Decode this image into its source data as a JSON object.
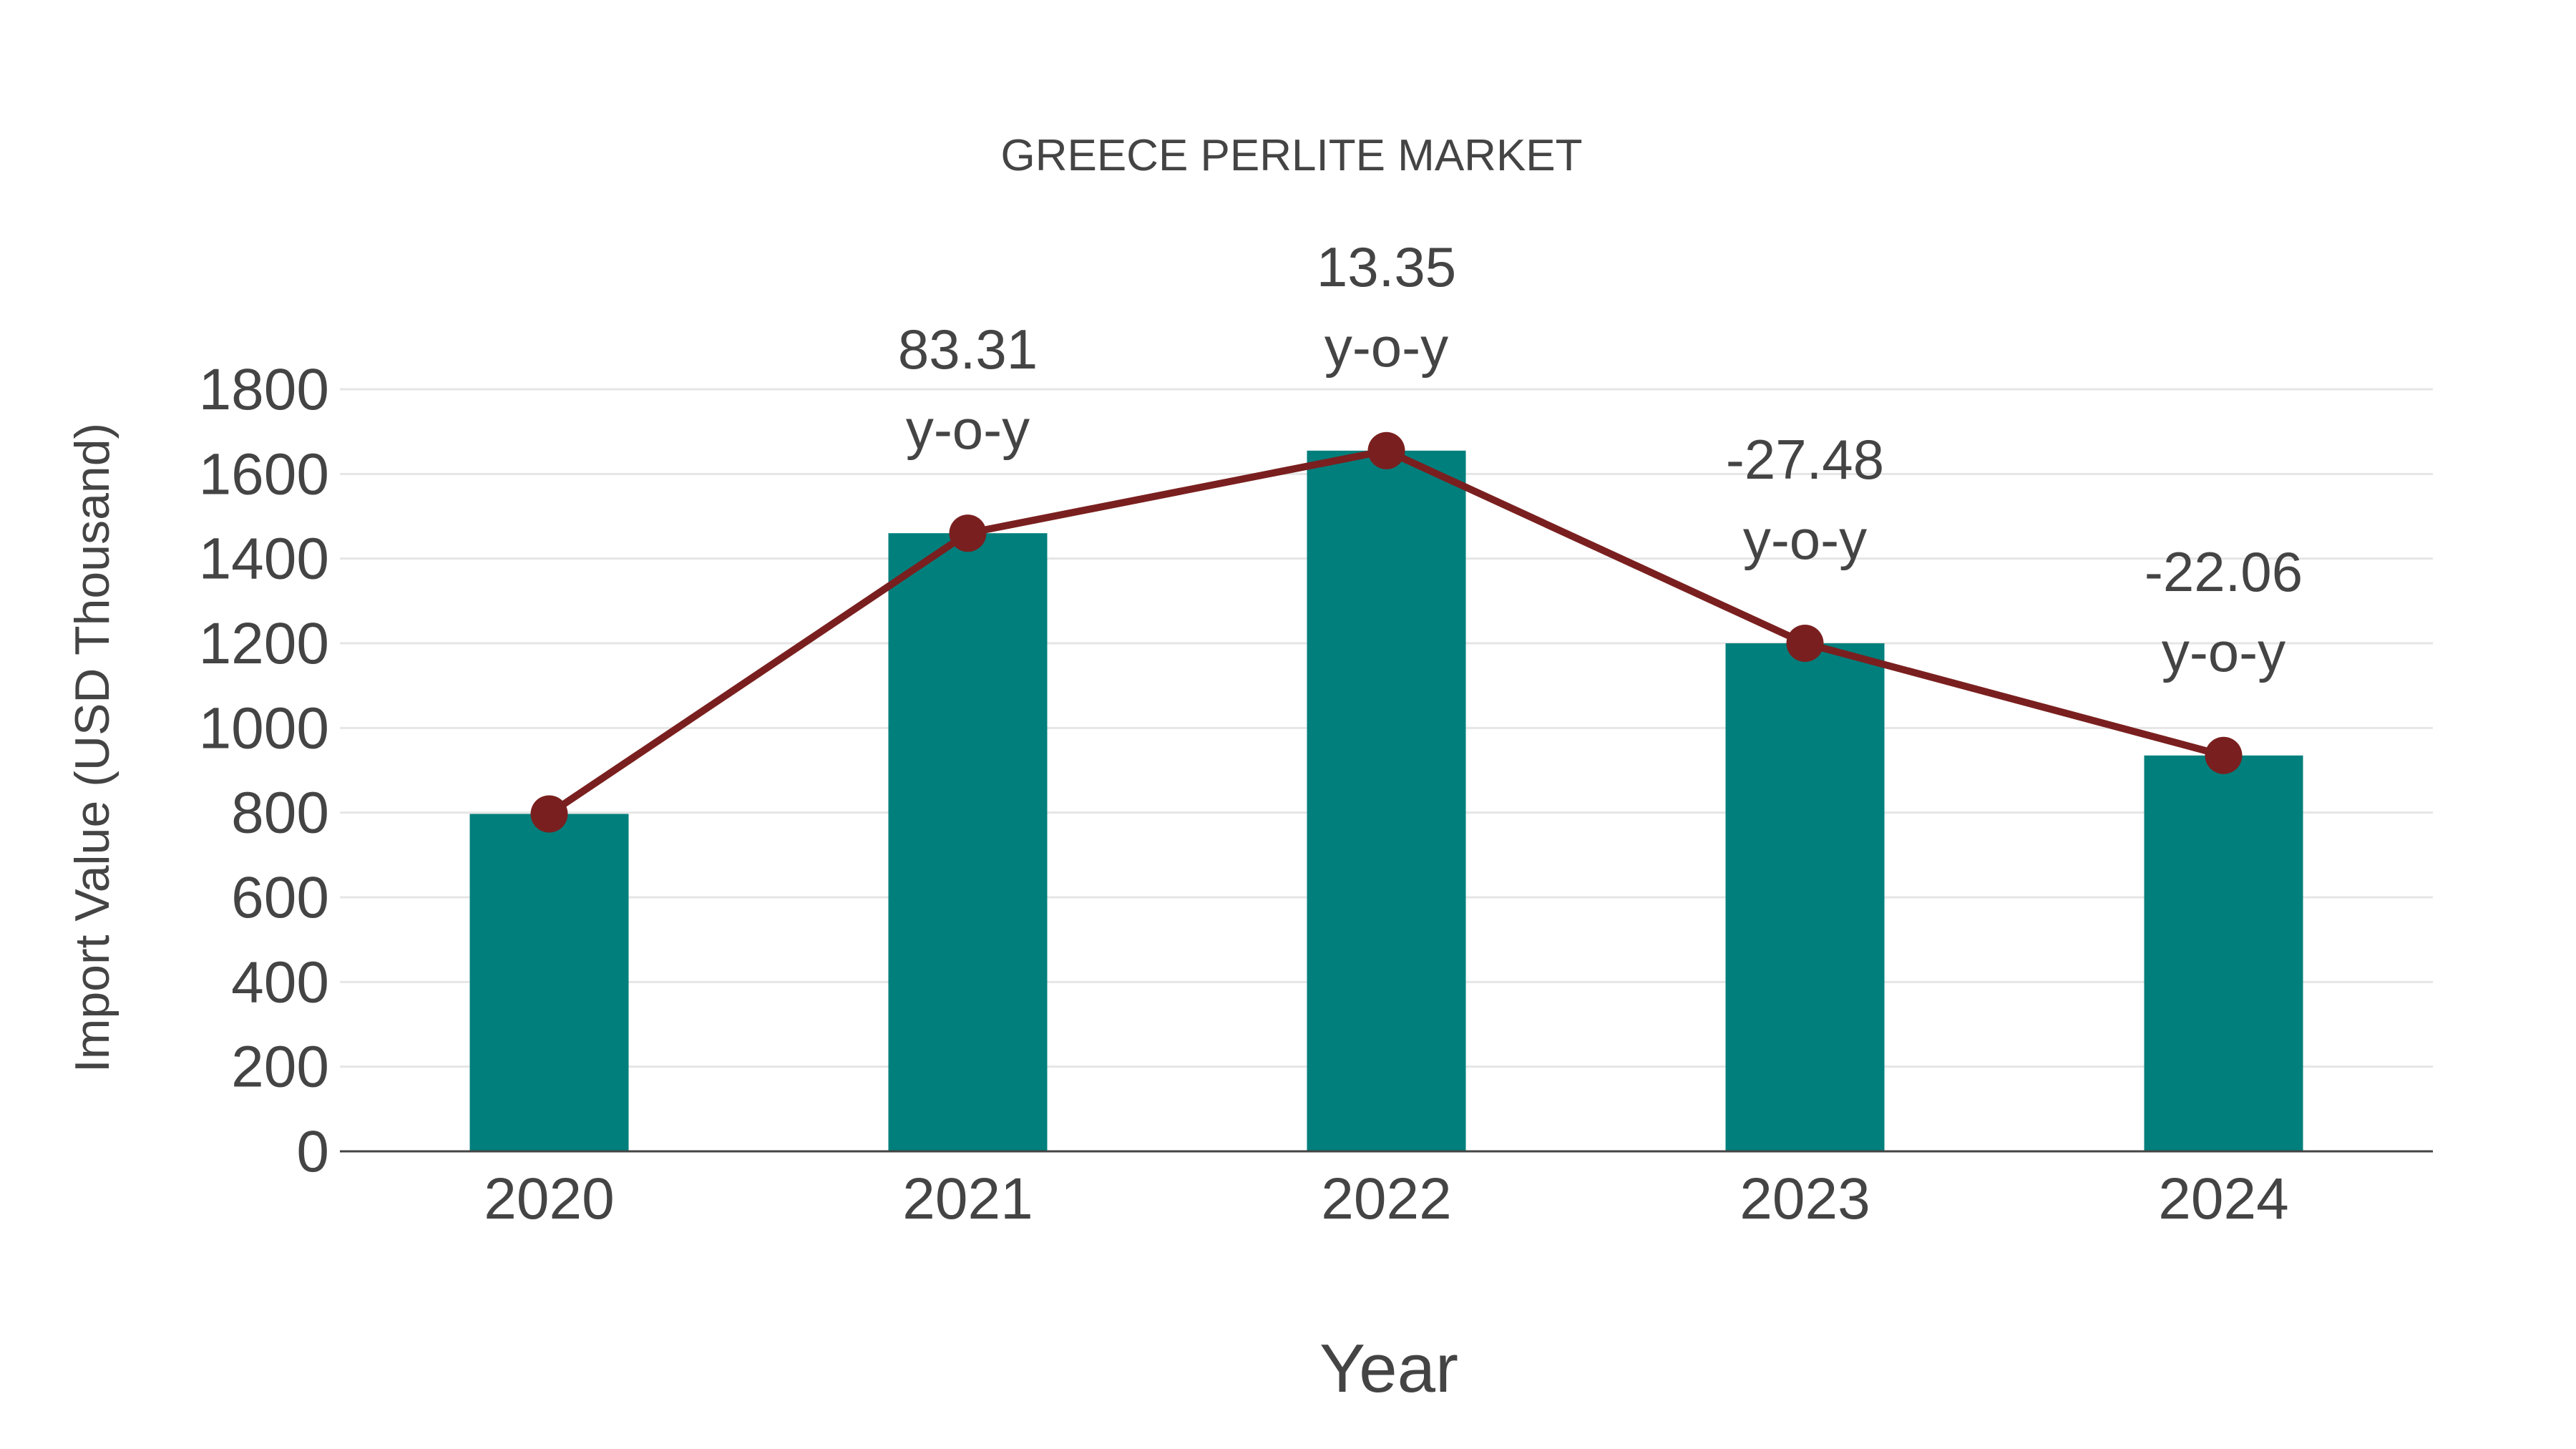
{
  "chart_data": {
    "type": "bar",
    "title": "GREECE PERLITE MARKET",
    "xlabel": "Year",
    "ylabel": "Import Value (USD Thousand)",
    "categories": [
      "2020",
      "2021",
      "2022",
      "2023",
      "2024"
    ],
    "series": [
      {
        "name": "Import Value",
        "type": "bar",
        "color": "#017F7C",
        "values": [
          797,
          1460,
          1655,
          1200,
          935
        ]
      },
      {
        "name": "Trend",
        "type": "line",
        "color": "#7A1F1F",
        "values": [
          797,
          1460,
          1655,
          1200,
          935
        ]
      }
    ],
    "annotations": [
      {
        "category": "2021",
        "value": "83.31",
        "suffix": "y-o-y"
      },
      {
        "category": "2022",
        "value": "13.35",
        "suffix": "y-o-y"
      },
      {
        "category": "2023",
        "value": "-27.48",
        "suffix": "y-o-y"
      },
      {
        "category": "2024",
        "value": "-22.06",
        "suffix": "y-o-y"
      }
    ],
    "yticks": [
      "0",
      "200",
      "400",
      "600",
      "800",
      "1000",
      "1200",
      "1400",
      "1600",
      "1800"
    ],
    "ylim": [
      0,
      1800
    ],
    "grid": true,
    "legend": "none"
  }
}
